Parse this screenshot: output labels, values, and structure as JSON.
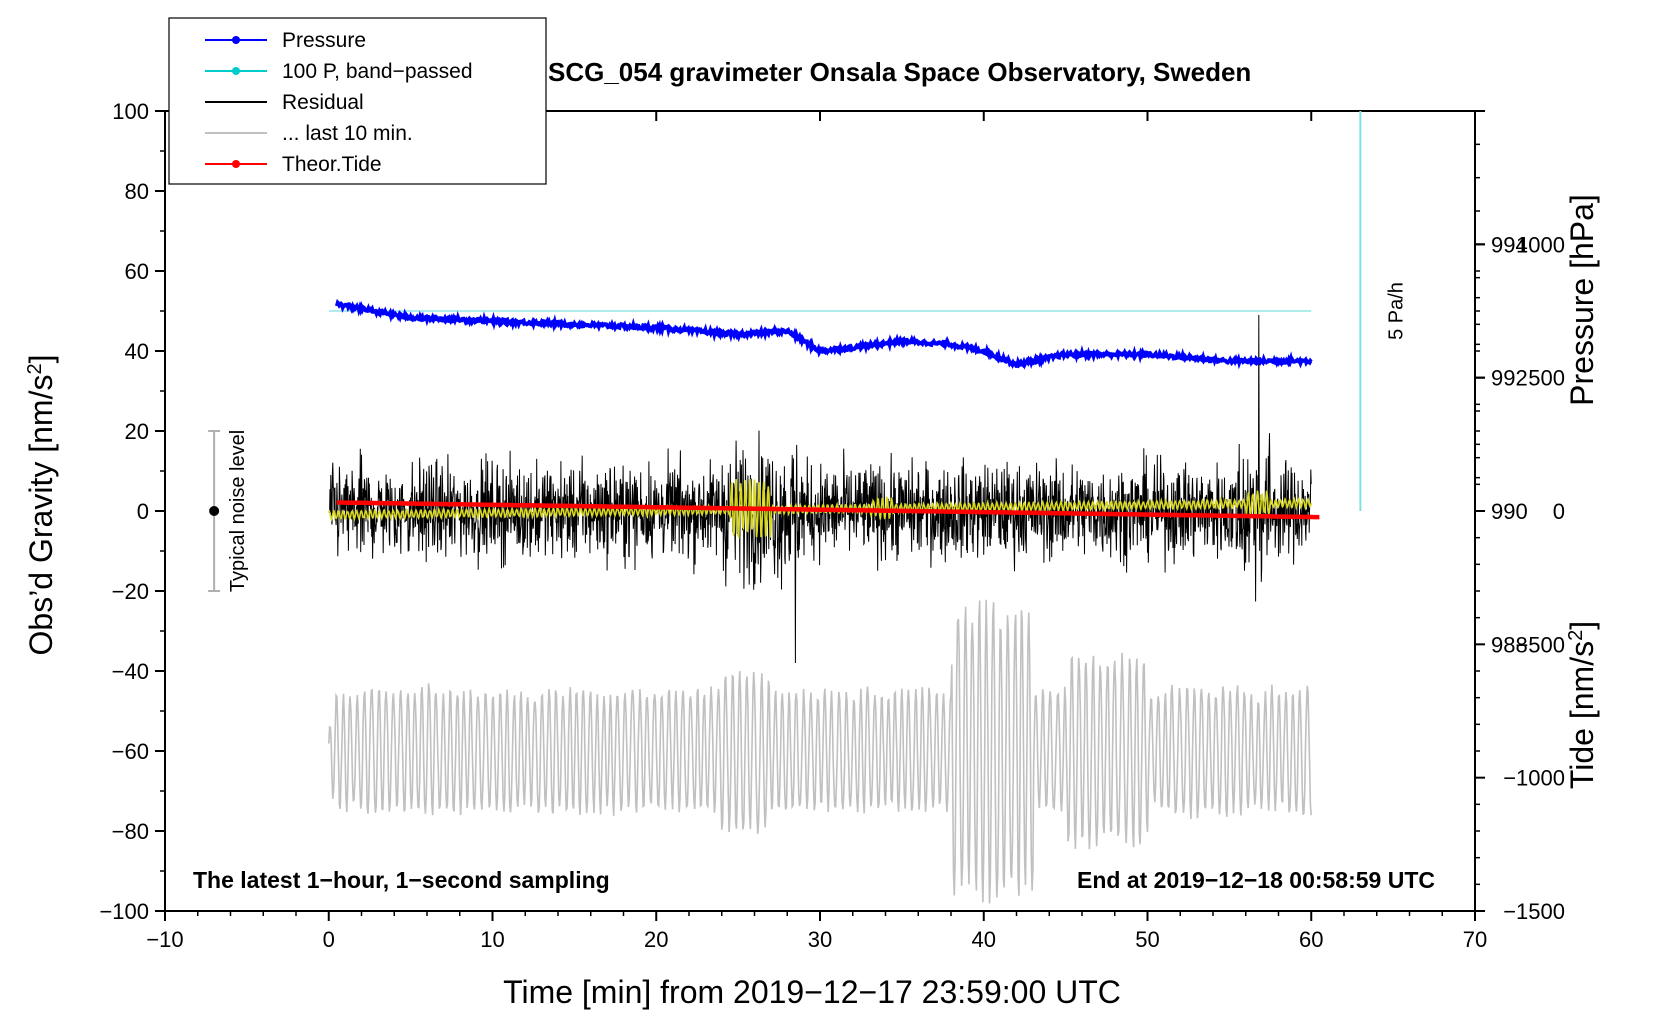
{
  "chart_data": {
    "type": "line",
    "title": "SCG_054 gravimeter Onsala Space Observatory, Sweden",
    "xlabel": "Time [min] from 2019−12−17 23:59:00 UTC",
    "ylabel_left": "Obs’d Gravity [nm/s",
    "ylabel_left_sup": "2",
    "ylabel_left_end": "]",
    "ylabel_pressure": "Pressure [hPa]",
    "ylabel_tide": "Tide [nm/s",
    "ylabel_tide_sup": "2",
    "ylabel_tide_end": "]",
    "xlim": [
      -10,
      70
    ],
    "ylim_left": [
      -100,
      100
    ],
    "pressure_range": [
      984,
      996
    ],
    "tide_range": [
      -1500,
      1500
    ],
    "x_ticks": [
      "−10",
      "0",
      "10",
      "20",
      "30",
      "40",
      "50",
      "60",
      "70"
    ],
    "y_left_ticks": [
      "−100",
      "−80",
      "−60",
      "−40",
      "−20",
      "0",
      "20",
      "40",
      "60",
      "80",
      "100"
    ],
    "pressure_ticks": [
      "988",
      "990",
      "992",
      "994"
    ],
    "tide_ticks": [
      "−1500",
      "−1000",
      "−500",
      "0",
      "500",
      "1000"
    ],
    "legend": [
      {
        "label": "Pressure",
        "color": "#0000ff",
        "marker": true
      },
      {
        "label": "100 P, band−passed",
        "color": "#00cccc",
        "marker": true
      },
      {
        "label": "Residual",
        "color": "#000000",
        "marker": false
      },
      {
        "label": "... last 10 min.",
        "color": "#c0c0c0",
        "marker": false
      },
      {
        "label": "Theor.Tide",
        "color": "#ff0000",
        "marker": true
      }
    ],
    "noise_level": {
      "center": 0,
      "low": -20,
      "high": 20,
      "x": -7,
      "label": "Typical noise level"
    },
    "rate_bar": {
      "x": 63,
      "y_top": 100,
      "y_bottom": 0,
      "label": "5 Pa/h"
    },
    "annotation_left": "The latest 1−hour, 1−second sampling",
    "annotation_right": "End at 2019−12−18 00:58:59 UTC",
    "pressure_hpa": {
      "x": [
        0.5,
        5,
        10,
        15,
        20,
        25,
        28,
        30,
        32,
        35,
        38,
        40,
        42,
        45,
        50,
        55,
        60
      ],
      "values": [
        993.1,
        992.9,
        992.85,
        992.8,
        992.75,
        992.65,
        992.7,
        992.4,
        992.45,
        992.55,
        992.5,
        992.4,
        992.2,
        992.35,
        992.35,
        992.25,
        992.25
      ]
    },
    "band_passed_pressure": {
      "x": [
        0,
        60
      ],
      "values": [
        50,
        50
      ]
    },
    "theoretical_tide": {
      "x": [
        0.5,
        60.5
      ],
      "values": [
        32,
        -23
      ]
    },
    "residual": {
      "x_range": [
        0,
        60
      ],
      "baseline": 0,
      "typical_amplitude": 15,
      "max": 49,
      "min": -38
    },
    "residual_smoothed": {
      "x_range": [
        0,
        60
      ],
      "baseline_start": -1,
      "baseline_end": 2
    },
    "last_10_min": {
      "x_range": [
        0,
        60
      ],
      "center": -60,
      "typical_amplitude": 15
    }
  }
}
